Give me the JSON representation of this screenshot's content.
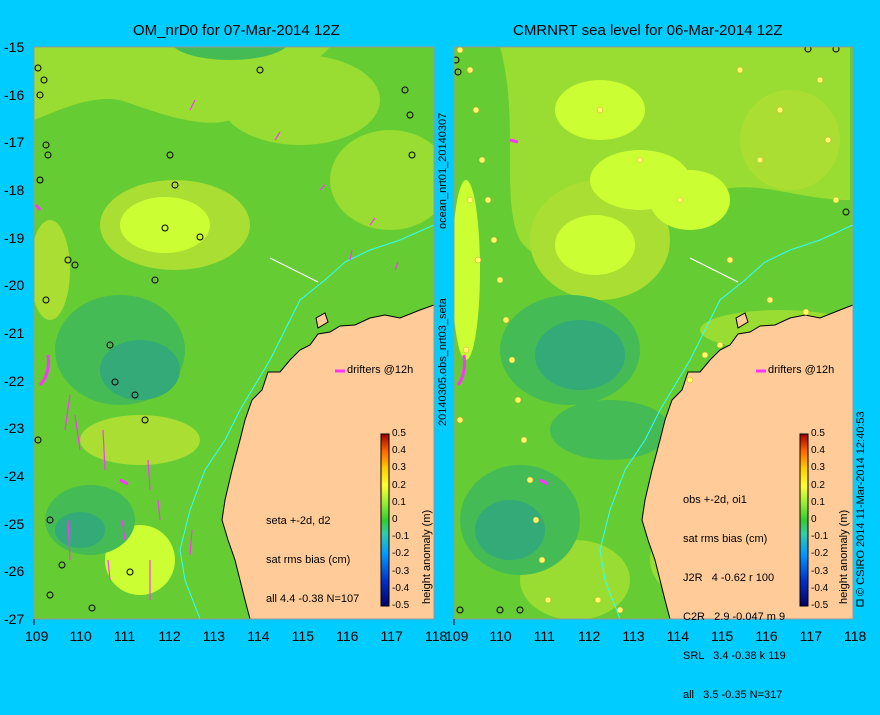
{
  "left_panel": {
    "title": "OM_nrD0 for 07-Mar-2014 12Z",
    "drifters_label": "drifters @12h",
    "legend_lines": [
      "seta +-2d, d2",
      "sat rms bias (cm)",
      "all 4.4 -0.38 N=107"
    ],
    "colorbar_title": "height anomaly (m)"
  },
  "right_panel": {
    "title": "CMRNRT sea level  for 06-Mar-2014 12Z",
    "drifters_label": "drifters @12h",
    "legend_lines": [
      "obs +-2d, oi1",
      "sat rms bias (cm)",
      "J2R   4 -0.62 r 100",
      "C2R   2.9 -0.047 m 9",
      "SRL   3.4 -0.38 k 119",
      "all   3.5 -0.35 N=317"
    ],
    "colorbar_title": "height anomaly (m)",
    "credit": "© CSIRO 2014  11-Mar-2014 12:40:53"
  },
  "middle_labels": {
    "top": "ocean_nrt01_20140307",
    "bottom": "20140305.obs_nrt03_seta"
  },
  "axes": {
    "lon_ticks": [
      "109",
      "110",
      "111",
      "112",
      "113",
      "114",
      "115",
      "116",
      "117",
      "118"
    ],
    "lat_ticks": [
      "-15",
      "-16",
      "-17",
      "-18",
      "-19",
      "-20",
      "-21",
      "-22",
      "-23",
      "-24",
      "-25",
      "-26",
      "-27"
    ],
    "lon_range": [
      109,
      118
    ],
    "lat_range": [
      -27,
      -15
    ]
  },
  "colorbar": {
    "ticks": [
      "0.5",
      "0.4",
      "0.3",
      "0.2",
      "0.1",
      "0",
      "-0.1",
      "-0.2",
      "-0.3",
      "-0.4",
      "-0.5"
    ],
    "range": [
      -0.5,
      0.5
    ]
  },
  "colors": {
    "background": "#00ccff",
    "land": "#ffcc99",
    "field_base": "#66cc33",
    "field_high": "#ccff33",
    "field_low": "#33aa77",
    "drifter": "#ff33ff",
    "shelf_line": "#33ffff"
  }
}
